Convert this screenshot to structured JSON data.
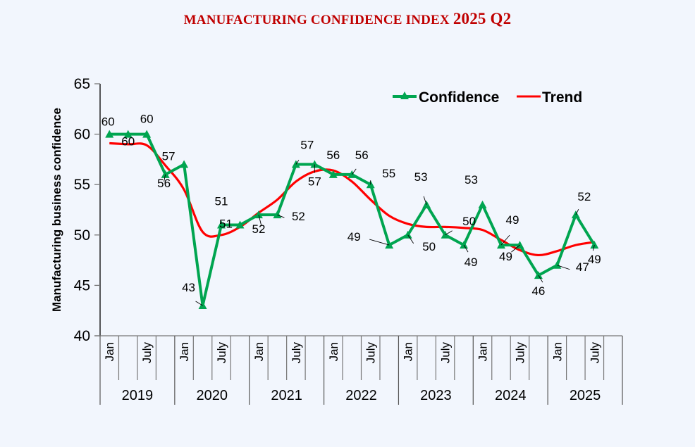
{
  "chart_data": {
    "type": "line",
    "title": "MANUFACTURING CONFIDENCE INDEX",
    "title_suffix": "2025 Q2",
    "xlabel": "",
    "ylabel": "Manufacturing business confidence",
    "ylim": [
      40,
      65
    ],
    "yticks": [
      40,
      45,
      50,
      55,
      60,
      65
    ],
    "grid": false,
    "legend": {
      "position": "top-right",
      "entries": [
        "Confidence",
        "Trend"
      ]
    },
    "years": [
      "2019",
      "2020",
      "2021",
      "2022",
      "2023",
      "2024",
      "2025"
    ],
    "quarter_labels": [
      "Jan",
      "",
      "July",
      ""
    ],
    "x": [
      "2019 Jan",
      "2019 Apr",
      "2019 July",
      "2019 Oct",
      "2020 Jan",
      "2020 Apr",
      "2020 July",
      "2020 Oct",
      "2021 Jan",
      "2021 Apr",
      "2021 July",
      "2021 Oct",
      "2022 Jan",
      "2022 Apr",
      "2022 July",
      "2022 Oct",
      "2023 Jan",
      "2023 Apr",
      "2023 July",
      "2023 Oct",
      "2024 Jan",
      "2024 Apr",
      "2024 July",
      "2024 Oct",
      "2025 Jan",
      "2025 Apr",
      "2025 July"
    ],
    "series": [
      {
        "name": "Confidence",
        "color": "#00a550",
        "marker": "triangle",
        "values": [
          60,
          60,
          60,
          56,
          57,
          43,
          51,
          51,
          52,
          52,
          57,
          57,
          56,
          56,
          55,
          49,
          50,
          53,
          50,
          49,
          53,
          49,
          49,
          46,
          47,
          52,
          49
        ]
      },
      {
        "name": "Trend",
        "color": "#ff0000",
        "smooth": true,
        "values": [
          59.1,
          59.0,
          58.9,
          56.9,
          54.5,
          50.3,
          50.0,
          50.8,
          52.2,
          53.5,
          55.3,
          56.3,
          56.4,
          55.3,
          53.5,
          51.9,
          51.1,
          50.8,
          50.8,
          50.7,
          50.5,
          49.5,
          48.5,
          48.0,
          48.4,
          49.0,
          49.3
        ]
      }
    ],
    "data_labels": [
      "60",
      "60",
      "60",
      "56",
      "57",
      "43",
      "51",
      "51",
      "52",
      "52",
      "57",
      "57",
      "56",
      "56",
      "55",
      "49",
      "50",
      "53",
      "50",
      "49",
      "53",
      "49",
      "49",
      "46",
      "47",
      "52",
      "49"
    ]
  }
}
